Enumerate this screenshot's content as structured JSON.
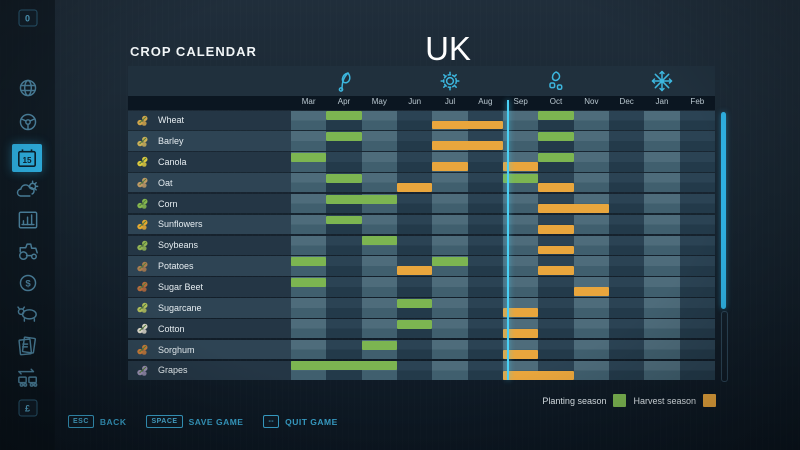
{
  "header": {
    "title": "CROP CALENDAR",
    "region": "UK"
  },
  "months": [
    "Mar",
    "Apr",
    "May",
    "Jun",
    "Jul",
    "Aug",
    "Sep",
    "Oct",
    "Nov",
    "Dec",
    "Jan",
    "Feb"
  ],
  "seasons": [
    {
      "name": "spring",
      "icon": "spring-leaf-icon",
      "center_month": "Apr"
    },
    {
      "name": "summer",
      "icon": "summer-sun-icon",
      "center_month": "Jul"
    },
    {
      "name": "autumn",
      "icon": "autumn-leaves-icon",
      "center_month": "Oct"
    },
    {
      "name": "winter",
      "icon": "winter-snowflake-icon",
      "center_month": "Jan"
    }
  ],
  "chart_data": {
    "type": "table",
    "title": "CROP CALENDAR UK",
    "row_labels": [
      "Wheat",
      "Barley",
      "Canola",
      "Oat",
      "Corn",
      "Sunflowers",
      "Soybeans",
      "Potatoes",
      "Sugar Beet",
      "Sugarcane",
      "Cotton",
      "Sorghum",
      "Grapes"
    ],
    "columns": [
      "Mar",
      "Apr",
      "May",
      "Jun",
      "Jul",
      "Aug",
      "Sep",
      "Oct",
      "Nov",
      "Dec",
      "Jan",
      "Feb"
    ],
    "series_legend": [
      "Planting season",
      "Harvest season"
    ]
  },
  "crops": [
    {
      "name": "Wheat",
      "icon": "wheat-icon",
      "icon_color": "#d2a54b",
      "planting": [
        [
          1,
          1
        ],
        [
          7,
          1
        ]
      ],
      "harvest": [
        [
          4,
          2
        ]
      ]
    },
    {
      "name": "Barley",
      "icon": "barley-icon",
      "icon_color": "#ccb058",
      "planting": [
        [
          1,
          1
        ],
        [
          7,
          1
        ]
      ],
      "harvest": [
        [
          4,
          2
        ]
      ]
    },
    {
      "name": "Canola",
      "icon": "canola-icon",
      "icon_color": "#ddc93e",
      "planting": [
        [
          0,
          1
        ],
        [
          7,
          1
        ]
      ],
      "harvest": [
        [
          4,
          1
        ],
        [
          6,
          1
        ]
      ]
    },
    {
      "name": "Oat",
      "icon": "oat-icon",
      "icon_color": "#c09a66",
      "planting": [
        [
          1,
          1
        ],
        [
          6,
          1
        ]
      ],
      "harvest": [
        [
          3,
          1
        ],
        [
          7,
          1
        ]
      ]
    },
    {
      "name": "Corn",
      "icon": "corn-icon",
      "icon_color": "#86b84f",
      "planting": [
        [
          1,
          2
        ]
      ],
      "harvest": [
        [
          7,
          2
        ]
      ]
    },
    {
      "name": "Sunflowers",
      "icon": "sunflowers-icon",
      "icon_color": "#e7a930",
      "planting": [
        [
          1,
          1
        ]
      ],
      "harvest": [
        [
          7,
          1
        ]
      ]
    },
    {
      "name": "Soybeans",
      "icon": "soybeans-icon",
      "icon_color": "#94b554",
      "planting": [
        [
          2,
          1
        ]
      ],
      "harvest": [
        [
          7,
          1
        ]
      ]
    },
    {
      "name": "Potatoes",
      "icon": "potatoes-icon",
      "icon_color": "#ab7c50",
      "planting": [
        [
          0,
          1
        ],
        [
          4,
          1
        ]
      ],
      "harvest": [
        [
          3,
          1
        ],
        [
          7,
          1
        ]
      ]
    },
    {
      "name": "Sugar Beet",
      "icon": "sugar-beet-icon",
      "icon_color": "#b56a3c",
      "planting": [
        [
          0,
          1
        ]
      ],
      "harvest": [
        [
          8,
          1
        ]
      ]
    },
    {
      "name": "Sugarcane",
      "icon": "sugarcane-icon",
      "icon_color": "#b3c05c",
      "planting": [
        [
          3,
          1
        ]
      ],
      "harvest": [
        [
          6,
          1
        ]
      ]
    },
    {
      "name": "Cotton",
      "icon": "cotton-icon",
      "icon_color": "#ded9cd",
      "planting": [
        [
          3,
          1
        ]
      ],
      "harvest": [
        [
          6,
          1
        ]
      ]
    },
    {
      "name": "Sorghum",
      "icon": "sorghum-icon",
      "icon_color": "#cd7c38",
      "planting": [
        [
          2,
          1
        ]
      ],
      "harvest": [
        [
          6,
          1
        ]
      ]
    },
    {
      "name": "Grapes",
      "icon": "grapes-icon",
      "icon_color": "#9d92b5",
      "planting": [
        [
          0,
          3
        ]
      ],
      "harvest": [
        [
          6,
          2
        ]
      ]
    }
  ],
  "current_day_marker": {
    "month_index": 6,
    "fraction": 0.15
  },
  "legend": {
    "planting_label": "Planting season",
    "harvest_label": "Harvest season"
  },
  "colors": {
    "planting": "#7cb551",
    "harvest": "#e9a63d",
    "accent": "#2fb2e4"
  },
  "sidebar": {
    "items": [
      {
        "icon": "key-0-icon",
        "label": "0",
        "keycap": true
      },
      {
        "icon": "map-globe-icon"
      },
      {
        "icon": "vehicles-steering-icon"
      },
      {
        "icon": "calendar-icon",
        "label": "15",
        "active": true
      },
      {
        "icon": "weather-icon"
      },
      {
        "icon": "statistics-icon"
      },
      {
        "icon": "garage-tractor-icon"
      },
      {
        "icon": "finances-icon",
        "label": "$"
      },
      {
        "icon": "animals-icon"
      },
      {
        "icon": "contracts-icon"
      },
      {
        "icon": "logistics-icon"
      },
      {
        "icon": "key-currency-icon",
        "label": "£",
        "keycap": true
      }
    ]
  },
  "footer": {
    "buttons": [
      {
        "key": "ESC",
        "label": "BACK"
      },
      {
        "key": "SPACE",
        "label": "SAVE GAME"
      },
      {
        "key": "--",
        "label": "QUIT GAME"
      }
    ]
  },
  "scrollbar": {
    "thumb_ratio": 0.73
  }
}
